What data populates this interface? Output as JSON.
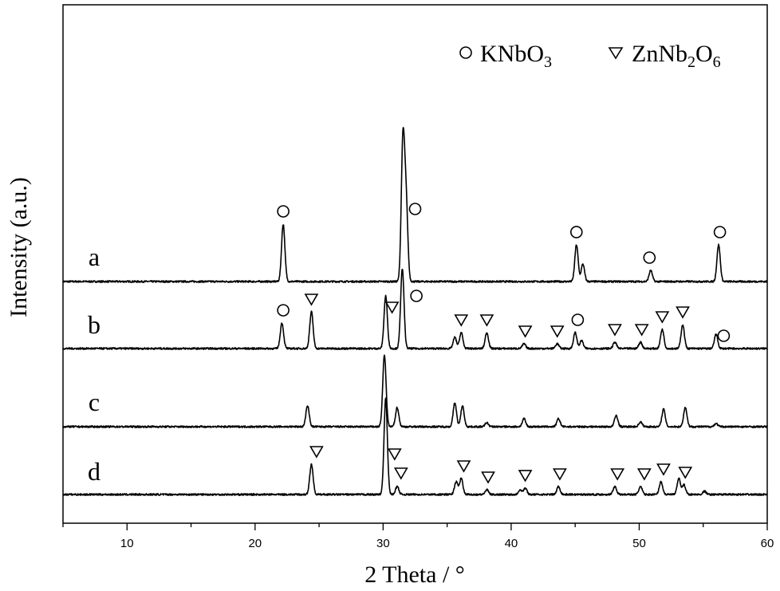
{
  "chart_data": {
    "type": "line",
    "xlabel": "2 Theta / °",
    "ylabel": "Intensity (a.u.)",
    "xlim": [
      5,
      60
    ],
    "xticks": [
      10,
      20,
      30,
      40,
      50,
      60
    ],
    "yticks": false,
    "grid": false,
    "legend_position": "top-right",
    "legend": [
      {
        "marker": "circle",
        "base": "KNbO",
        "sub": "3"
      },
      {
        "marker": "triangle",
        "base": "ZnNb",
        "sub": "2",
        "base2": "O",
        "sub2": "6"
      }
    ],
    "series": [
      {
        "name": "a",
        "peaks": [
          {
            "x": 22.2,
            "h": 72
          },
          {
            "x": 31.55,
            "h": 175
          },
          {
            "x": 31.8,
            "h": 95
          },
          {
            "x": 45.1,
            "h": 46
          },
          {
            "x": 45.6,
            "h": 22
          },
          {
            "x": 50.9,
            "h": 14
          },
          {
            "x": 56.2,
            "h": 46
          }
        ],
        "markers": [
          {
            "type": "circle",
            "x": 22.2
          },
          {
            "type": "circle",
            "x": 32.5
          },
          {
            "type": "circle",
            "x": 45.1
          },
          {
            "type": "circle",
            "x": 50.8
          },
          {
            "type": "circle",
            "x": 56.3
          }
        ]
      },
      {
        "name": "b",
        "peaks": [
          {
            "x": 22.1,
            "h": 32
          },
          {
            "x": 24.4,
            "h": 46
          },
          {
            "x": 30.2,
            "h": 66
          },
          {
            "x": 31.5,
            "h": 100
          },
          {
            "x": 35.6,
            "h": 14
          },
          {
            "x": 36.1,
            "h": 20
          },
          {
            "x": 38.1,
            "h": 20
          },
          {
            "x": 41.0,
            "h": 6
          },
          {
            "x": 43.6,
            "h": 6
          },
          {
            "x": 45.0,
            "h": 20
          },
          {
            "x": 45.5,
            "h": 10
          },
          {
            "x": 48.1,
            "h": 8
          },
          {
            "x": 50.1,
            "h": 8
          },
          {
            "x": 51.8,
            "h": 24
          },
          {
            "x": 53.4,
            "h": 30
          },
          {
            "x": 56.0,
            "h": 18
          }
        ],
        "markers": [
          {
            "type": "circle",
            "x": 22.2
          },
          {
            "type": "triangle",
            "x": 24.4
          },
          {
            "type": "triangle",
            "x": 30.7
          },
          {
            "type": "circle",
            "x": 32.6
          },
          {
            "type": "triangle",
            "x": 36.1
          },
          {
            "type": "triangle",
            "x": 38.1
          },
          {
            "type": "triangle",
            "x": 41.1
          },
          {
            "type": "triangle",
            "x": 43.6
          },
          {
            "type": "circle",
            "x": 45.2
          },
          {
            "type": "triangle",
            "x": 48.1
          },
          {
            "type": "triangle",
            "x": 50.2
          },
          {
            "type": "triangle",
            "x": 51.8
          },
          {
            "type": "triangle",
            "x": 53.4
          },
          {
            "type": "circle",
            "x": 56.6
          }
        ]
      },
      {
        "name": "c",
        "peaks": [
          {
            "x": 24.1,
            "h": 26
          },
          {
            "x": 30.1,
            "h": 90
          },
          {
            "x": 31.1,
            "h": 24
          },
          {
            "x": 35.6,
            "h": 30
          },
          {
            "x": 36.2,
            "h": 26
          },
          {
            "x": 38.1,
            "h": 5
          },
          {
            "x": 41.0,
            "h": 10
          },
          {
            "x": 43.7,
            "h": 10
          },
          {
            "x": 48.2,
            "h": 14
          },
          {
            "x": 50.1,
            "h": 6
          },
          {
            "x": 51.9,
            "h": 22
          },
          {
            "x": 53.6,
            "h": 24
          },
          {
            "x": 56.0,
            "h": 4
          }
        ],
        "markers": []
      },
      {
        "name": "d",
        "peaks": [
          {
            "x": 24.4,
            "h": 38
          },
          {
            "x": 30.2,
            "h": 120
          },
          {
            "x": 31.1,
            "h": 10
          },
          {
            "x": 35.7,
            "h": 16
          },
          {
            "x": 36.1,
            "h": 20
          },
          {
            "x": 38.1,
            "h": 6
          },
          {
            "x": 40.7,
            "h": 6
          },
          {
            "x": 41.1,
            "h": 8
          },
          {
            "x": 43.7,
            "h": 10
          },
          {
            "x": 48.1,
            "h": 10
          },
          {
            "x": 50.1,
            "h": 10
          },
          {
            "x": 51.7,
            "h": 16
          },
          {
            "x": 53.1,
            "h": 20
          },
          {
            "x": 53.5,
            "h": 12
          },
          {
            "x": 55.1,
            "h": 4
          }
        ],
        "markers": [
          {
            "type": "triangle",
            "x": 24.8
          },
          {
            "type": "triangle",
            "x": 30.9
          },
          {
            "type": "triangle",
            "x": 31.4
          },
          {
            "type": "triangle",
            "x": 36.3
          },
          {
            "type": "triangle",
            "x": 38.2
          },
          {
            "type": "triangle",
            "x": 41.1
          },
          {
            "type": "triangle",
            "x": 43.8
          },
          {
            "type": "triangle",
            "x": 48.3
          },
          {
            "type": "triangle",
            "x": 50.4
          },
          {
            "type": "triangle",
            "x": 51.9
          },
          {
            "type": "triangle",
            "x": 53.6
          }
        ]
      }
    ]
  }
}
